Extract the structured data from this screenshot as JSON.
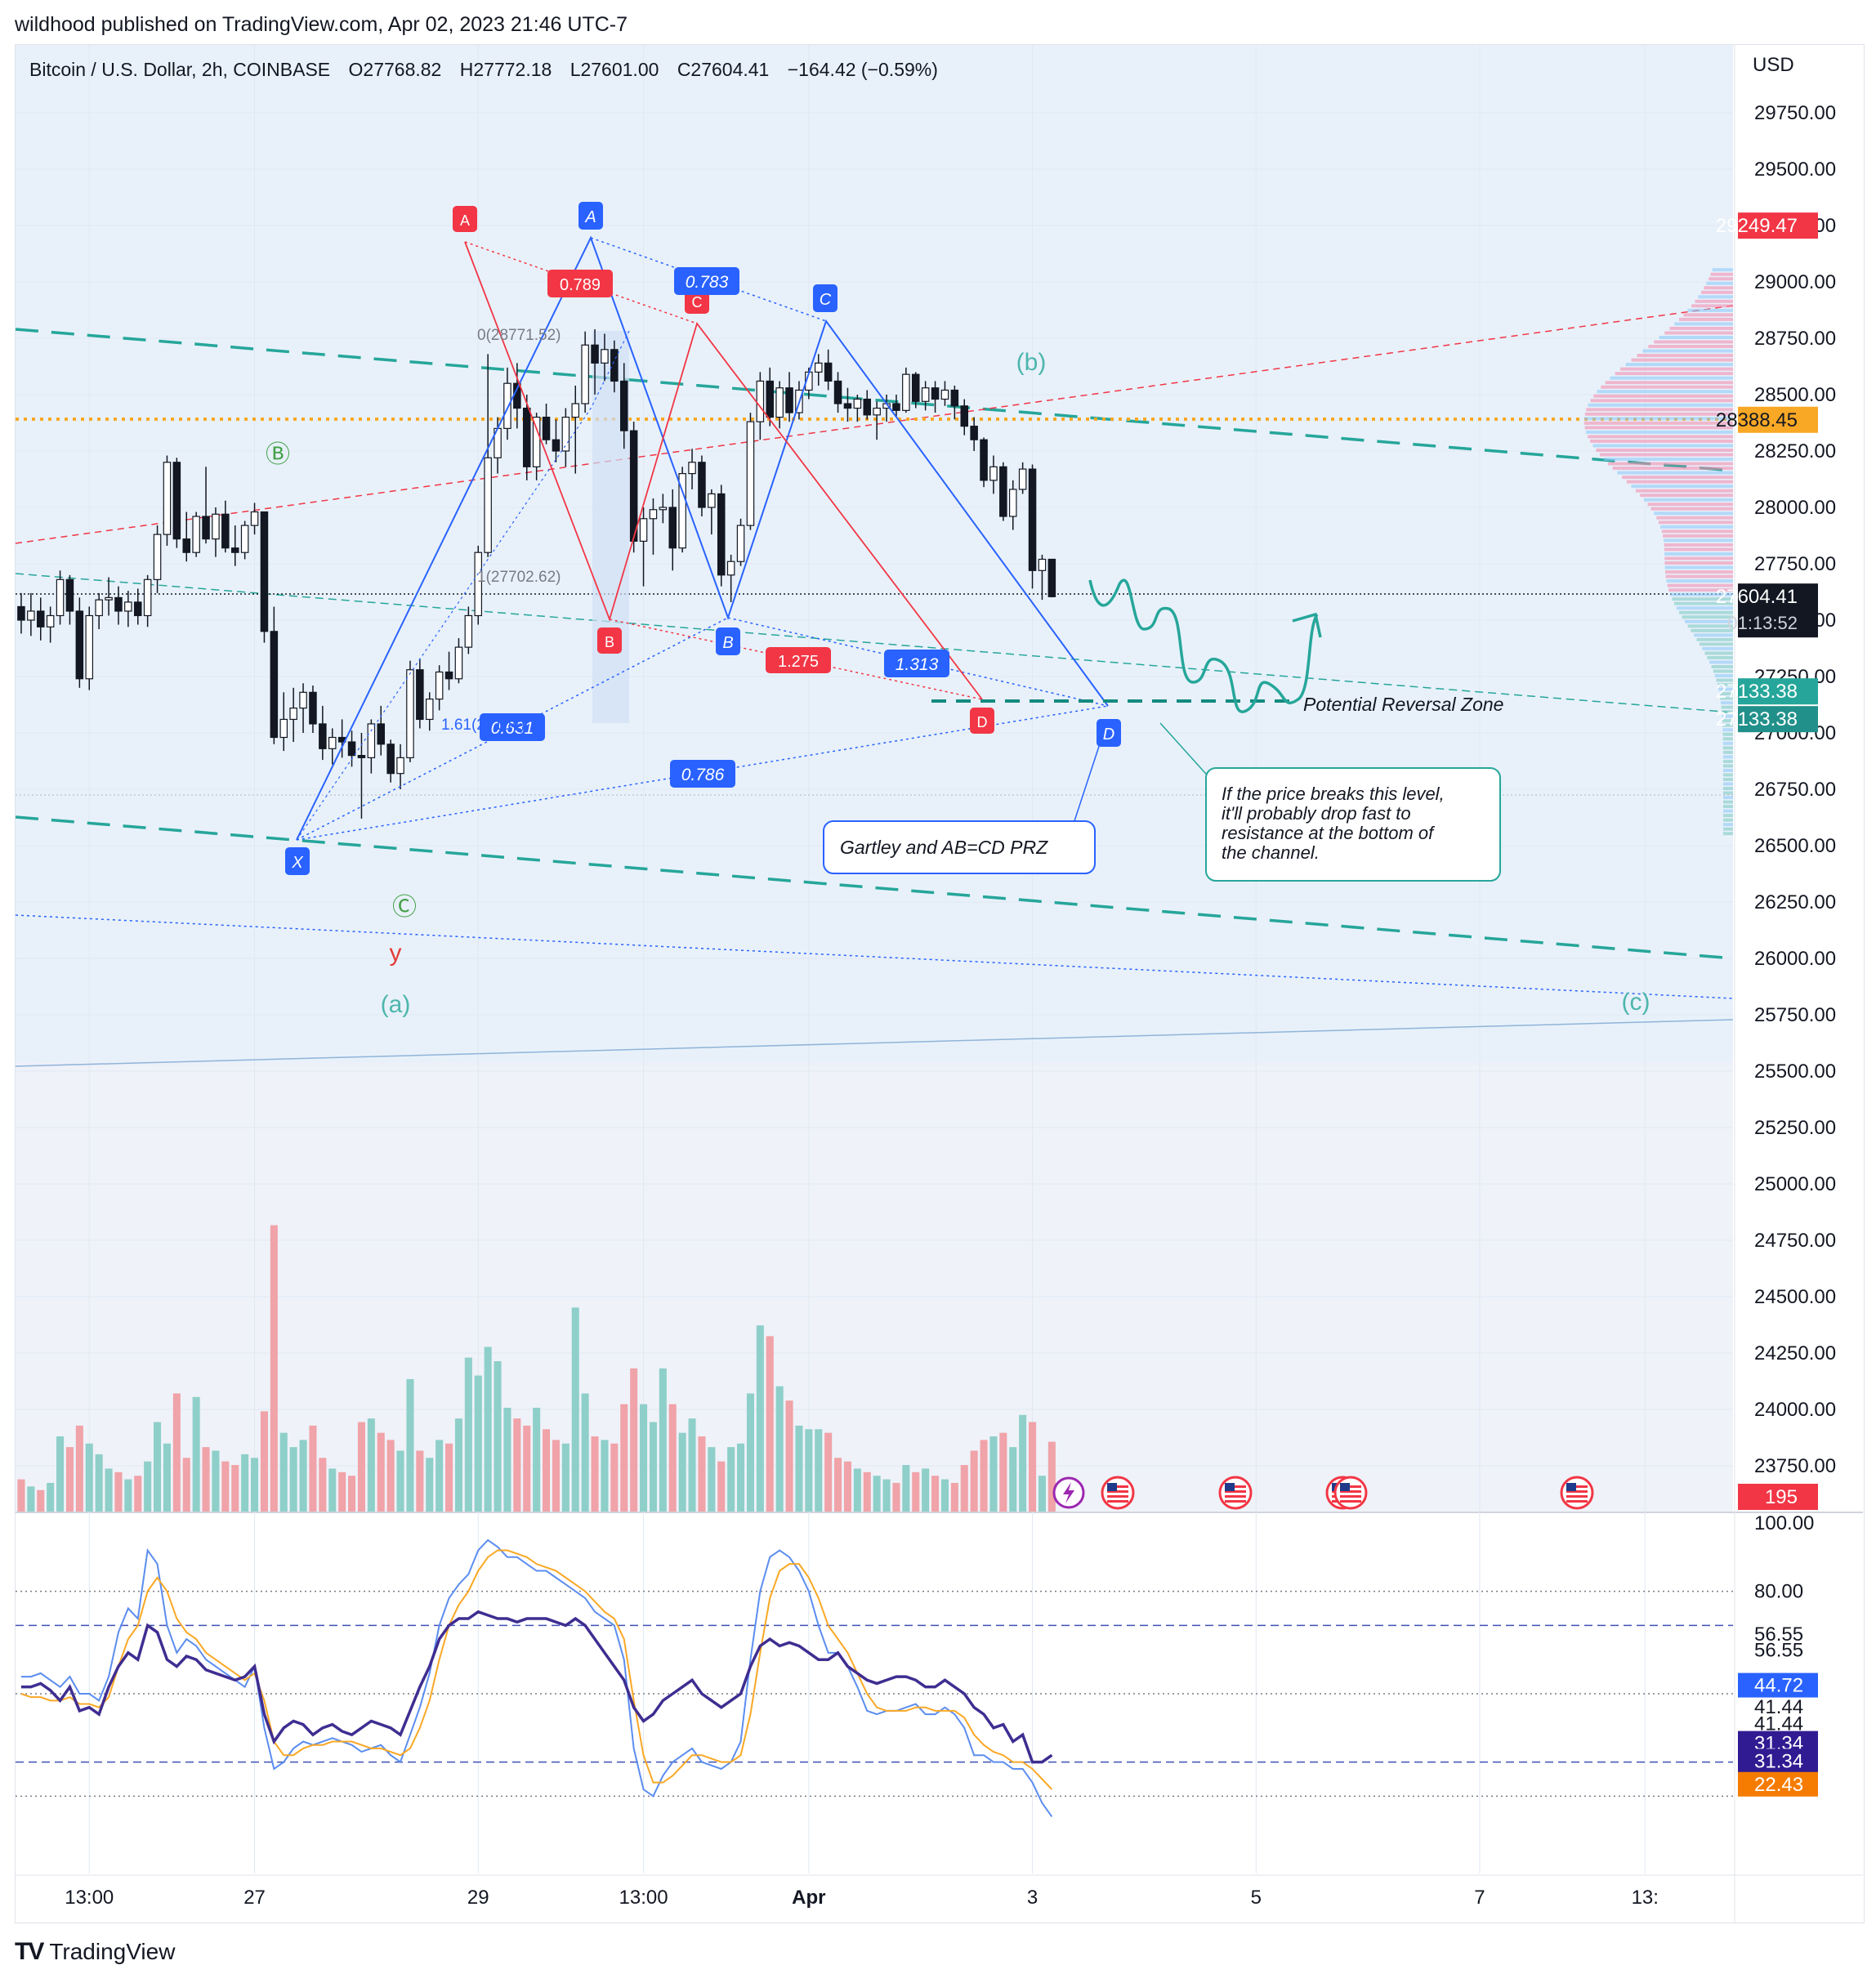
{
  "publisher": "wildhood published on TradingView.com, Apr 02, 2023 21:46 UTC-7",
  "legend": {
    "symbol": "Bitcoin / U.S. Dollar, 2h, COINBASE",
    "open": "O27768.82",
    "high": "H27772.18",
    "low": "L27601.00",
    "close": "C27604.41",
    "change": "−164.42 (−0.59%)"
  },
  "currency": "USD",
  "footer": {
    "brand": "TradingView",
    "logo_icon": "tradingview-logo-icon"
  },
  "colors": {
    "up": "#26a69a",
    "down": "#131722",
    "pattern_blue": "#2962ff",
    "pattern_red": "#f23645",
    "channel": "#26a69a",
    "price_line": "#f9a825",
    "stoch_k": "#5b8def",
    "stoch_d": "#f9a825",
    "rsi": "#3f2d91"
  },
  "chart_data": {
    "type": "candlestick",
    "price_axis": {
      "ticks": [
        "29750.00",
        "29500.00",
        "29250.00",
        "29000.00",
        "28750.00",
        "28500.00",
        "28250.00",
        "28000.00",
        "27750.00",
        "27500.00",
        "27250.00",
        "27000.00",
        "26750.00",
        "26500.00",
        "26250.00",
        "26000.00",
        "25750.00",
        "25500.00",
        "25250.00",
        "25000.00",
        "24750.00",
        "24500.00",
        "24250.00",
        "24000.00",
        "23750.00"
      ],
      "tick_values": [
        29750,
        29500,
        29250,
        29000,
        28750,
        28500,
        28250,
        28000,
        27750,
        27500,
        27250,
        27000,
        26750,
        26500,
        26250,
        26000,
        25750,
        25500,
        25250,
        25000,
        24750,
        24500,
        24250,
        24000,
        23750
      ],
      "range": [
        23550,
        30050
      ],
      "badges": [
        {
          "label": "29249.47",
          "value": 29249.47,
          "color": "#f23645",
          "text_color": "#ffffff"
        },
        {
          "label": "28388.45",
          "value": 28388.45,
          "color": "#f9a825",
          "text_color": "#131722"
        },
        {
          "label": "27604.41",
          "value": 27604.41,
          "color": "#131722",
          "text_color": "#ffffff",
          "sub": "01:13:52"
        },
        {
          "label": "27133.38",
          "value": 27133.38,
          "color": "#26a69a",
          "text_color": "#ffffff"
        },
        {
          "label": "27133.38",
          "value": 27133.38,
          "color": "#22908a",
          "text_color": "#ffffff"
        },
        {
          "label": "195",
          "value": 23700,
          "color": "#f23645",
          "text_color": "#ffffff"
        }
      ]
    },
    "time_axis": {
      "labels": [
        {
          "text": "13:00",
          "bar": 7
        },
        {
          "text": "27",
          "bar": 24
        },
        {
          "text": "29",
          "bar": 47
        },
        {
          "text": "13:00",
          "bar": 64
        },
        {
          "text": "Apr",
          "bar": 81
        },
        {
          "text": "3",
          "bar": 104
        },
        {
          "text": "5",
          "bar": 127
        },
        {
          "text": "7",
          "bar": 150
        },
        {
          "text": "13:",
          "bar": 167
        }
      ]
    },
    "candles": [
      [
        27560,
        27620,
        27440,
        27500,
        90
      ],
      [
        27500,
        27620,
        27430,
        27540,
        70
      ],
      [
        27540,
        27600,
        27410,
        27470,
        60
      ],
      [
        27470,
        27560,
        27400,
        27520,
        80
      ],
      [
        27520,
        27720,
        27480,
        27680,
        210
      ],
      [
        27680,
        27700,
        27480,
        27540,
        180
      ],
      [
        27540,
        27600,
        27200,
        27240,
        240
      ],
      [
        27240,
        27560,
        27190,
        27520,
        190
      ],
      [
        27520,
        27620,
        27460,
        27590,
        160
      ],
      [
        27590,
        27690,
        27520,
        27600,
        120
      ],
      [
        27600,
        27650,
        27480,
        27540,
        110
      ],
      [
        27540,
        27630,
        27470,
        27580,
        90
      ],
      [
        27580,
        27640,
        27480,
        27520,
        100
      ],
      [
        27520,
        27700,
        27470,
        27680,
        140
      ],
      [
        27680,
        27920,
        27620,
        27880,
        250
      ],
      [
        27880,
        28230,
        27830,
        28200,
        190
      ],
      [
        28200,
        28220,
        27820,
        27860,
        330
      ],
      [
        27860,
        27980,
        27760,
        27800,
        150
      ],
      [
        27800,
        27980,
        27780,
        27960,
        320
      ],
      [
        27960,
        28180,
        27840,
        27860,
        180
      ],
      [
        27860,
        28000,
        27780,
        27970,
        170
      ],
      [
        27970,
        28030,
        27800,
        27820,
        140
      ],
      [
        27820,
        27920,
        27740,
        27800,
        130
      ],
      [
        27800,
        27940,
        27770,
        27920,
        160
      ],
      [
        27920,
        28020,
        27880,
        27980,
        150
      ],
      [
        27980,
        27960,
        27400,
        27450,
        280
      ],
      [
        27450,
        27560,
        26950,
        26980,
        800
      ],
      [
        26980,
        27180,
        26920,
        27060,
        220
      ],
      [
        27060,
        27200,
        26960,
        27110,
        180
      ],
      [
        27110,
        27220,
        27000,
        27180,
        200
      ],
      [
        27180,
        27210,
        27000,
        27040,
        240
      ],
      [
        27040,
        27120,
        26880,
        26930,
        150
      ],
      [
        26930,
        27020,
        26860,
        26980,
        120
      ],
      [
        26980,
        27060,
        26890,
        26960,
        110
      ],
      [
        26960,
        27010,
        26850,
        26900,
        100
      ],
      [
        26900,
        27000,
        26620,
        26890,
        250
      ],
      [
        26890,
        27060,
        26820,
        27040,
        260
      ],
      [
        27040,
        27120,
        26900,
        26950,
        220
      ],
      [
        26950,
        26970,
        26780,
        26820,
        200
      ],
      [
        26820,
        26950,
        26750,
        26890,
        170
      ],
      [
        26890,
        27320,
        26870,
        27280,
        370
      ],
      [
        27280,
        27330,
        27020,
        27060,
        170
      ],
      [
        27060,
        27180,
        27010,
        27150,
        150
      ],
      [
        27150,
        27300,
        27100,
        27270,
        200
      ],
      [
        27270,
        27360,
        27190,
        27240,
        190
      ],
      [
        27240,
        27420,
        27220,
        27380,
        260
      ],
      [
        27380,
        27560,
        27350,
        27520,
        430
      ],
      [
        27520,
        27830,
        27480,
        27800,
        380
      ],
      [
        27800,
        28680,
        27780,
        28220,
        460
      ],
      [
        28220,
        28400,
        28150,
        28350,
        420
      ],
      [
        28350,
        28620,
        28300,
        28550,
        290
      ],
      [
        28550,
        28640,
        28350,
        28440,
        260
      ],
      [
        28440,
        28500,
        28120,
        28180,
        240
      ],
      [
        28180,
        28420,
        28120,
        28400,
        290
      ],
      [
        28400,
        28460,
        28280,
        28300,
        230
      ],
      [
        28300,
        28390,
        28200,
        28250,
        200
      ],
      [
        28250,
        28440,
        28180,
        28400,
        190
      ],
      [
        28400,
        28540,
        28150,
        28460,
        570
      ],
      [
        28460,
        28780,
        28420,
        28720,
        330
      ],
      [
        28720,
        28790,
        28500,
        28640,
        210
      ],
      [
        28640,
        28770,
        28560,
        28700,
        200
      ],
      [
        28700,
        28740,
        28510,
        28560,
        190
      ],
      [
        28560,
        28640,
        28260,
        28340,
        300
      ],
      [
        28340,
        28380,
        27800,
        27850,
        400
      ],
      [
        27850,
        28000,
        27650,
        27950,
        300
      ],
      [
        27950,
        28040,
        27790,
        27990,
        250
      ],
      [
        27990,
        28060,
        27930,
        28000,
        400
      ],
      [
        28000,
        28080,
        27720,
        27820,
        300
      ],
      [
        27820,
        28180,
        27800,
        28150,
        220
      ],
      [
        28150,
        28260,
        28080,
        28200,
        260
      ],
      [
        28200,
        28230,
        27960,
        28000,
        210
      ],
      [
        28000,
        28080,
        27880,
        28060,
        180
      ],
      [
        28060,
        28100,
        27650,
        27700,
        140
      ],
      [
        27700,
        27790,
        27580,
        27760,
        180
      ],
      [
        27760,
        27950,
        27740,
        27920,
        190
      ],
      [
        27920,
        28420,
        27900,
        28380,
        330
      ],
      [
        28380,
        28600,
        28300,
        28560,
        520
      ],
      [
        28560,
        28620,
        28360,
        28400,
        490
      ],
      [
        28400,
        28560,
        28350,
        28530,
        350
      ],
      [
        28530,
        28600,
        28380,
        28420,
        310
      ],
      [
        28420,
        28560,
        28390,
        28520,
        240
      ],
      [
        28520,
        28620,
        28480,
        28600,
        230
      ],
      [
        28600,
        28680,
        28540,
        28640,
        230
      ],
      [
        28640,
        28700,
        28520,
        28560,
        220
      ],
      [
        28560,
        28600,
        28420,
        28460,
        150
      ],
      [
        28460,
        28530,
        28380,
        28440,
        140
      ],
      [
        28440,
        28500,
        28380,
        28480,
        120
      ],
      [
        28480,
        28520,
        28390,
        28410,
        110
      ],
      [
        28410,
        28470,
        28300,
        28440,
        100
      ],
      [
        28440,
        28500,
        28380,
        28460,
        90
      ],
      [
        28460,
        28500,
        28400,
        28430,
        80
      ],
      [
        28430,
        28620,
        28420,
        28590,
        130
      ],
      [
        28590,
        28600,
        28440,
        28470,
        110
      ],
      [
        28470,
        28560,
        28430,
        28530,
        120
      ],
      [
        28530,
        28560,
        28420,
        28480,
        100
      ],
      [
        28480,
        28560,
        28450,
        28520,
        90
      ],
      [
        28520,
        28540,
        28390,
        28450,
        80
      ],
      [
        28450,
        28480,
        28320,
        28360,
        130
      ],
      [
        28360,
        28400,
        28250,
        28300,
        170
      ],
      [
        28300,
        28310,
        28090,
        28120,
        200
      ],
      [
        28120,
        28230,
        28060,
        28180,
        210
      ],
      [
        28180,
        28200,
        27940,
        27960,
        220
      ],
      [
        27960,
        28120,
        27900,
        28080,
        180
      ],
      [
        28080,
        28200,
        28060,
        28170,
        270
      ],
      [
        28170,
        28190,
        27640,
        27720,
        250
      ],
      [
        27720,
        27790,
        27590,
        27770,
        100
      ],
      [
        27770,
        27772,
        27601,
        27604,
        195
      ]
    ],
    "volume_axis_max": 1050,
    "stochastic_rsi": {
      "axis_labels": [
        "100.00",
        "80.00",
        "56.55",
        "56.55",
        "44.72",
        "41.44",
        "41.44",
        "31.34",
        "31.34",
        "22.43"
      ],
      "axis_values": [
        100,
        80,
        67.5,
        62.8,
        52.5,
        46.2,
        41.3,
        35.5,
        30.3,
        23.5
      ],
      "last_badges": [
        {
          "label": "44.72",
          "value": 44.72,
          "color": "#2962ff"
        },
        {
          "label": "31.34",
          "value": 31.34,
          "color": "#311b92"
        },
        {
          "label": "31.34",
          "value": 31.34,
          "color": "#311b92"
        },
        {
          "label": "22.43",
          "value": 22.43,
          "color": "#f57c00"
        }
      ],
      "levels": [
        80,
        70,
        50,
        30,
        20
      ],
      "k": [
        55,
        55,
        56,
        54,
        52,
        55,
        50,
        50,
        48,
        55,
        68,
        75,
        72,
        92,
        88,
        70,
        62,
        66,
        64,
        60,
        58,
        56,
        54,
        52,
        58,
        40,
        28,
        30,
        34,
        36,
        35,
        36,
        37,
        36,
        35,
        33,
        34,
        35,
        32,
        30,
        38,
        46,
        56,
        70,
        78,
        82,
        85,
        92,
        95,
        93,
        90,
        90,
        88,
        86,
        86,
        84,
        82,
        80,
        78,
        74,
        72,
        70,
        60,
        34,
        22,
        20,
        26,
        30,
        32,
        34,
        30,
        29,
        28,
        30,
        36,
        60,
        80,
        90,
        92,
        90,
        86,
        80,
        70,
        62,
        62,
        58,
        52,
        45,
        44,
        45,
        45,
        46,
        47,
        44,
        44,
        46,
        44,
        40,
        32,
        32,
        30,
        30,
        28,
        28,
        24,
        18,
        14
      ],
      "d": [
        50,
        49,
        49,
        48,
        48,
        49,
        47,
        47,
        46,
        49,
        58,
        66,
        70,
        80,
        84,
        80,
        72,
        68,
        66,
        62,
        60,
        58,
        56,
        54,
        56,
        48,
        36,
        32,
        32,
        34,
        35,
        35,
        36,
        36,
        36,
        35,
        34,
        34,
        33,
        32,
        34,
        40,
        48,
        60,
        70,
        76,
        80,
        86,
        90,
        92,
        92,
        91,
        90,
        88,
        87,
        86,
        84,
        82,
        80,
        77,
        74,
        72,
        66,
        48,
        32,
        24,
        24,
        26,
        29,
        32,
        32,
        31,
        30,
        30,
        32,
        44,
        62,
        78,
        86,
        88,
        88,
        84,
        78,
        70,
        66,
        62,
        56,
        50,
        46,
        45,
        45,
        45,
        46,
        46,
        45,
        45,
        45,
        43,
        38,
        35,
        33,
        32,
        30,
        30,
        28,
        25,
        22
      ],
      "rsi": [
        52,
        52,
        53,
        51,
        48,
        52,
        45,
        46,
        44,
        52,
        58,
        62,
        60,
        70,
        68,
        60,
        58,
        61,
        60,
        57,
        56,
        55,
        54,
        55,
        58,
        44,
        36,
        40,
        42,
        41,
        38,
        40,
        41,
        39,
        38,
        40,
        42,
        41,
        40,
        38,
        45,
        52,
        58,
        66,
        70,
        72,
        72,
        74,
        73,
        72,
        72,
        71,
        72,
        72,
        72,
        71,
        70,
        72,
        70,
        66,
        62,
        58,
        54,
        46,
        42,
        44,
        48,
        50,
        52,
        54,
        50,
        48,
        46,
        48,
        50,
        58,
        64,
        66,
        64,
        65,
        64,
        62,
        60,
        60,
        62,
        58,
        56,
        54,
        53,
        54,
        55,
        55,
        54,
        52,
        52,
        54,
        52,
        50,
        46,
        44,
        40,
        41,
        36,
        38,
        30,
        30,
        32
      ]
    }
  },
  "annotations": {
    "harmonic_blue": {
      "labels": [
        "X",
        "A",
        "B",
        "C",
        "D"
      ],
      "ratios": [
        "0.631",
        "0.783",
        "1.313",
        "0.786"
      ],
      "fib_labels": [
        "0(28771.52)",
        "1(27702.62)",
        "1.61(27104)"
      ],
      "note": "Gartley and AB=CD PRZ"
    },
    "harmonic_red": {
      "labels": [
        "A",
        "B",
        "C",
        "D"
      ],
      "ratios": [
        "0.789",
        "1.275"
      ]
    },
    "wave_labels": [
      "Ⓑ",
      "Ⓒ",
      "y",
      "(a)",
      "(b)",
      "(c)"
    ],
    "prz_label": "Potential Reversal Zone",
    "callout": [
      "If the price breaks this level,",
      "it'll probably drop fast to",
      "resistance at the bottom of",
      "the channel."
    ],
    "event_icons": [
      "lightning-icon",
      "us-flag-icon",
      "us-flag-icon",
      "us-flag-icon",
      "us-flag-icon"
    ]
  }
}
